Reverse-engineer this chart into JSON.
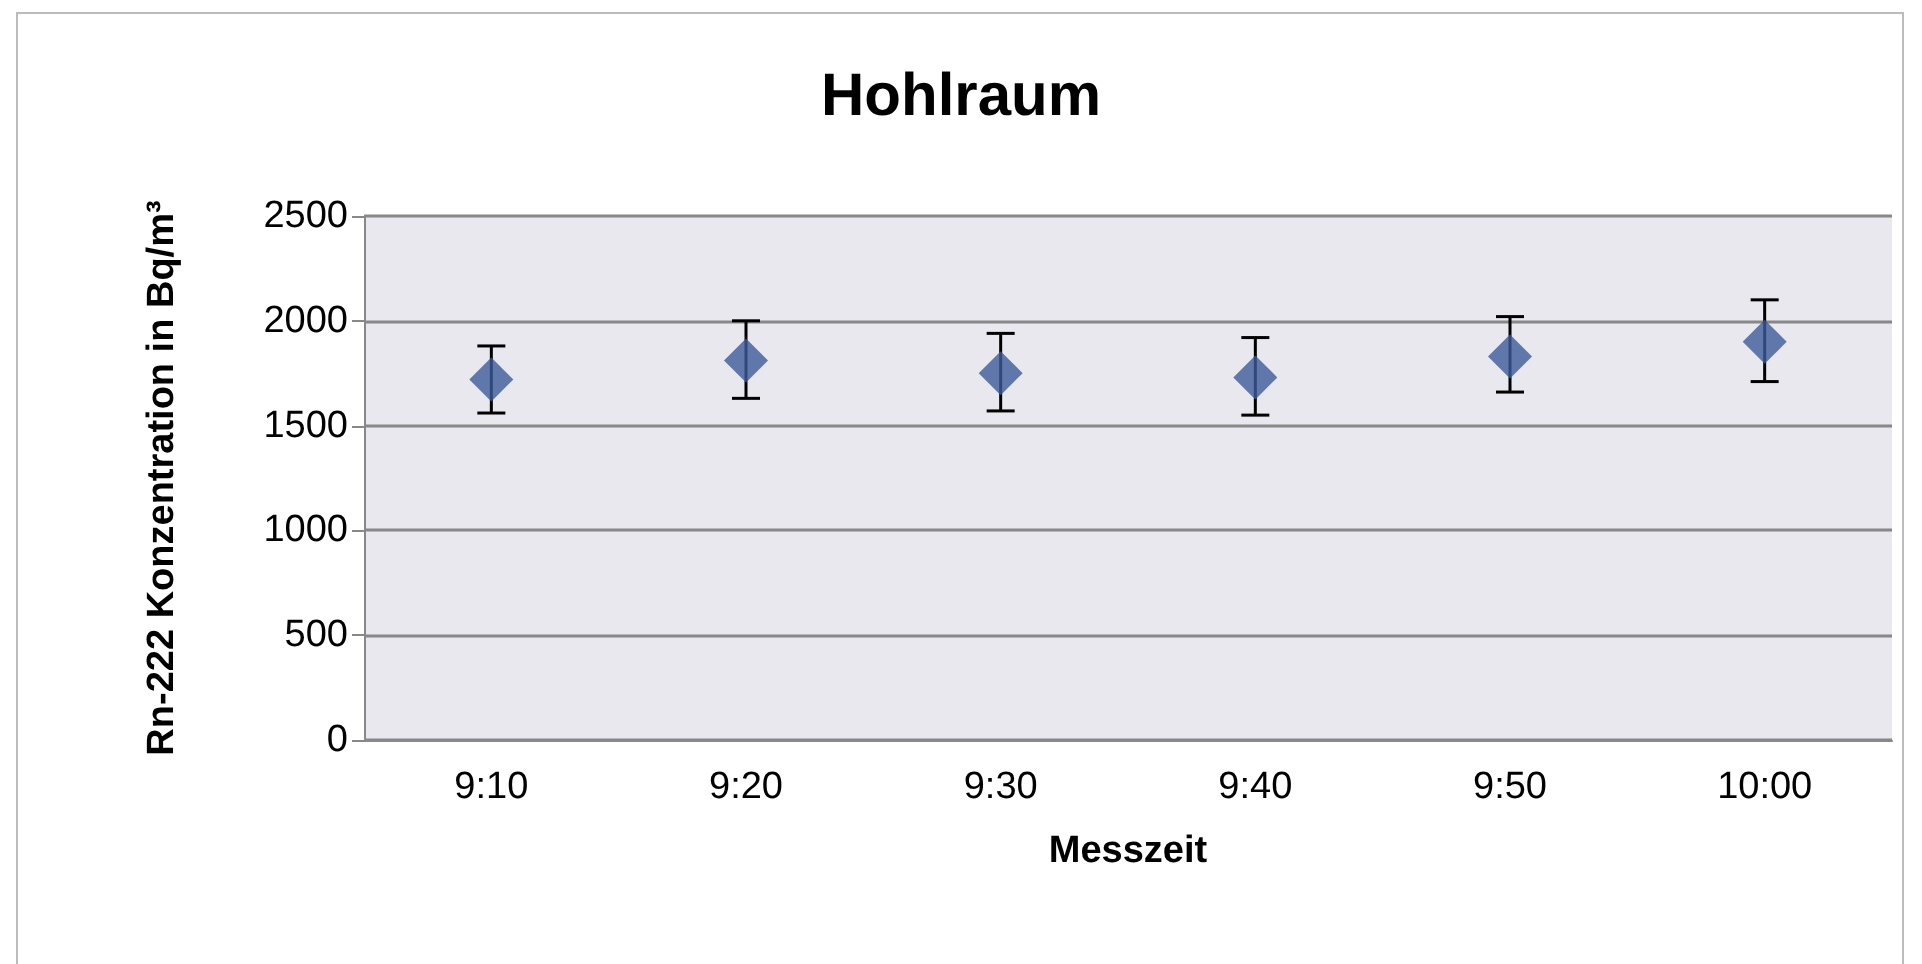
{
  "chart_data": {
    "type": "scatter",
    "title": "Hohlraum",
    "xlabel": "Messzeit",
    "ylabel": "Rn-222 Konzentration in Bq/m³",
    "categories": [
      "9:10",
      "9:20",
      "9:30",
      "9:40",
      "9:50",
      "10:00"
    ],
    "series": [
      {
        "color": "#3c5a9a",
        "values": [
          1720,
          1810,
          1750,
          1730,
          1830,
          1900
        ],
        "errors": [
          [
            1560,
            1880
          ],
          [
            1630,
            2000
          ],
          [
            1570,
            1940
          ],
          [
            1550,
            1920
          ],
          [
            1660,
            2020
          ],
          [
            1710,
            2100
          ]
        ]
      }
    ],
    "ylim": [
      0,
      2500
    ],
    "yticks": [
      0,
      500,
      1000,
      1500,
      2000,
      2500
    ],
    "grid": "y",
    "marker": "diamond"
  }
}
